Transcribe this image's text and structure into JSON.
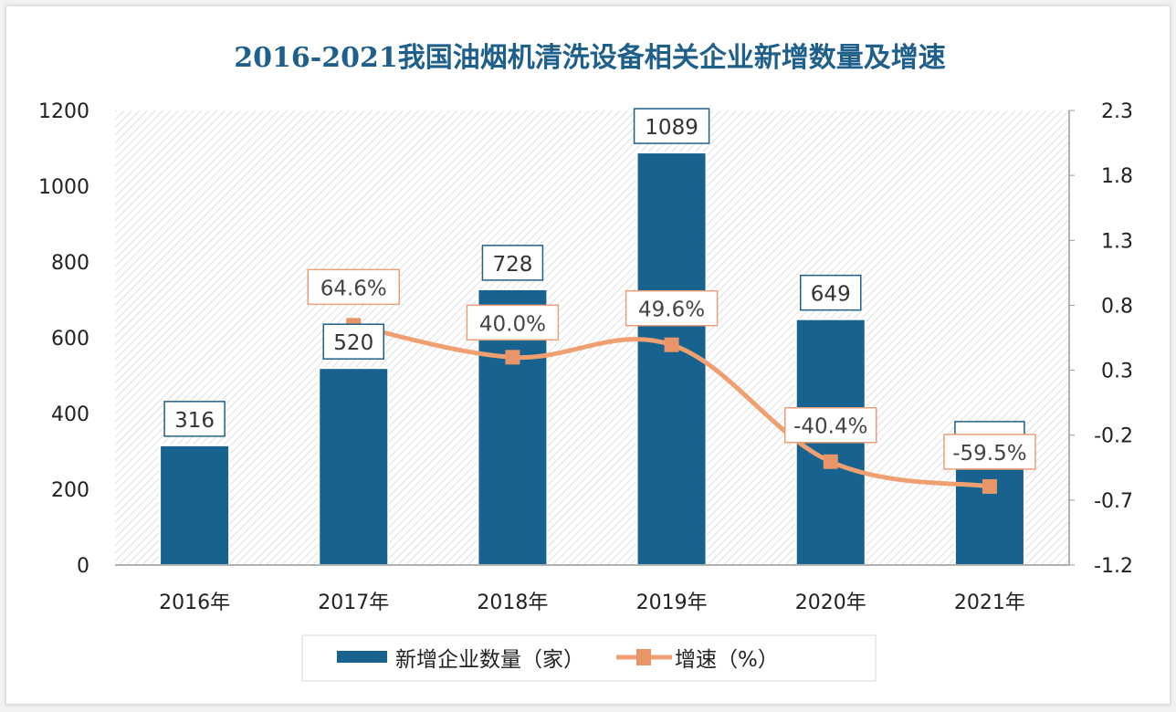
{
  "chart_data": {
    "type": "bar",
    "title": "2016-2021我国油烟机清洗设备相关企业新增数量及增速",
    "categories": [
      "2016年",
      "2017年",
      "2018年",
      "2019年",
      "2020年",
      "2021年"
    ],
    "series": [
      {
        "name": "新增企业数量（家）",
        "type": "bar",
        "axis": "left",
        "values": [
          316,
          520,
          728,
          1089,
          649,
          263
        ],
        "labels": [
          "316",
          "520",
          "728",
          "1089",
          "649",
          ""
        ],
        "color": "#17628f"
      },
      {
        "name": "增速（%）",
        "type": "line",
        "axis": "right",
        "values": [
          null,
          0.646,
          0.4,
          0.496,
          -0.404,
          -0.595
        ],
        "labels": [
          "",
          "64.6%",
          "40.0%",
          "49.6%",
          "-40.4%",
          "-59.5%"
        ],
        "color": "#f0a070"
      }
    ],
    "y_left": {
      "range": [
        0,
        1200
      ],
      "ticks": [
        "0",
        "200",
        "400",
        "600",
        "800",
        "1000",
        "1200"
      ]
    },
    "y_right": {
      "range": [
        -1.2,
        2.3
      ],
      "ticks": [
        "-1.2",
        "-0.7",
        "-0.2",
        "0.3",
        "0.8",
        "1.3",
        "1.8",
        "2.3"
      ]
    },
    "grid": false,
    "legend": "bottom",
    "title_color": "#1f5f8b"
  }
}
